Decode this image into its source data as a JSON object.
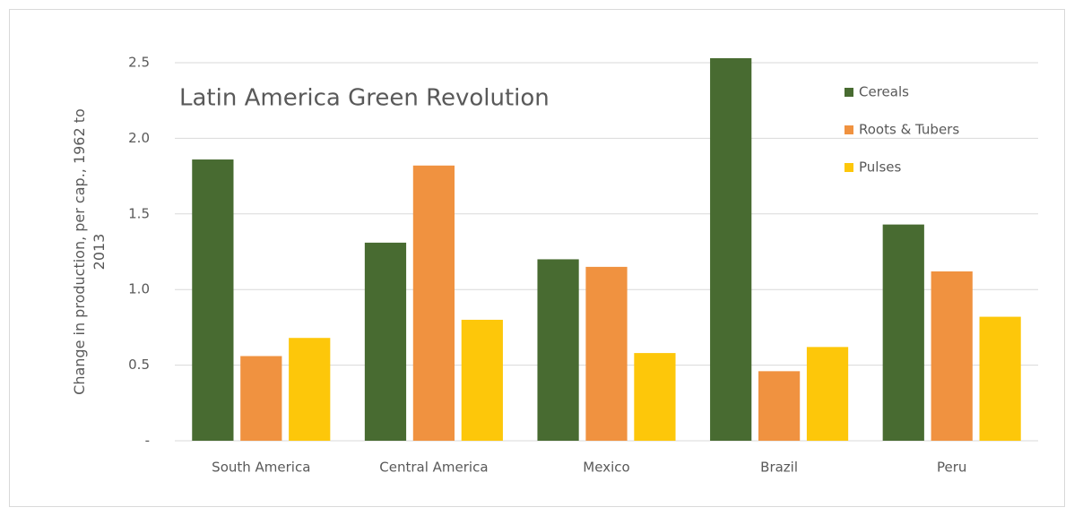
{
  "chart_data": {
    "type": "bar",
    "title": "Latin America Green Revolution",
    "y_label": "Change in production, per cap., 1962 to 2013",
    "categories": [
      "South America",
      "Central America",
      "Mexico",
      "Brazil",
      "Peru"
    ],
    "series": [
      {
        "name": "Cereals",
        "color": "#486b31",
        "values": [
          1.86,
          1.31,
          1.2,
          2.53,
          1.43
        ]
      },
      {
        "name": "Roots & Tubers",
        "color": "#f09240",
        "values": [
          0.56,
          1.82,
          1.15,
          0.46,
          1.12
        ]
      },
      {
        "name": "Pulses",
        "color": "#fdc70a",
        "values": [
          0.68,
          0.8,
          0.58,
          0.62,
          0.82
        ]
      }
    ],
    "ylim": [
      0,
      2.5
    ],
    "yticks": [
      {
        "value": 0,
        "label": "-"
      },
      0.5,
      {
        "value": 1,
        "label": "1.0"
      },
      1.5,
      {
        "value": 2,
        "label": "2.0"
      },
      2.5
    ],
    "grid": true,
    "legend": "upper right"
  }
}
